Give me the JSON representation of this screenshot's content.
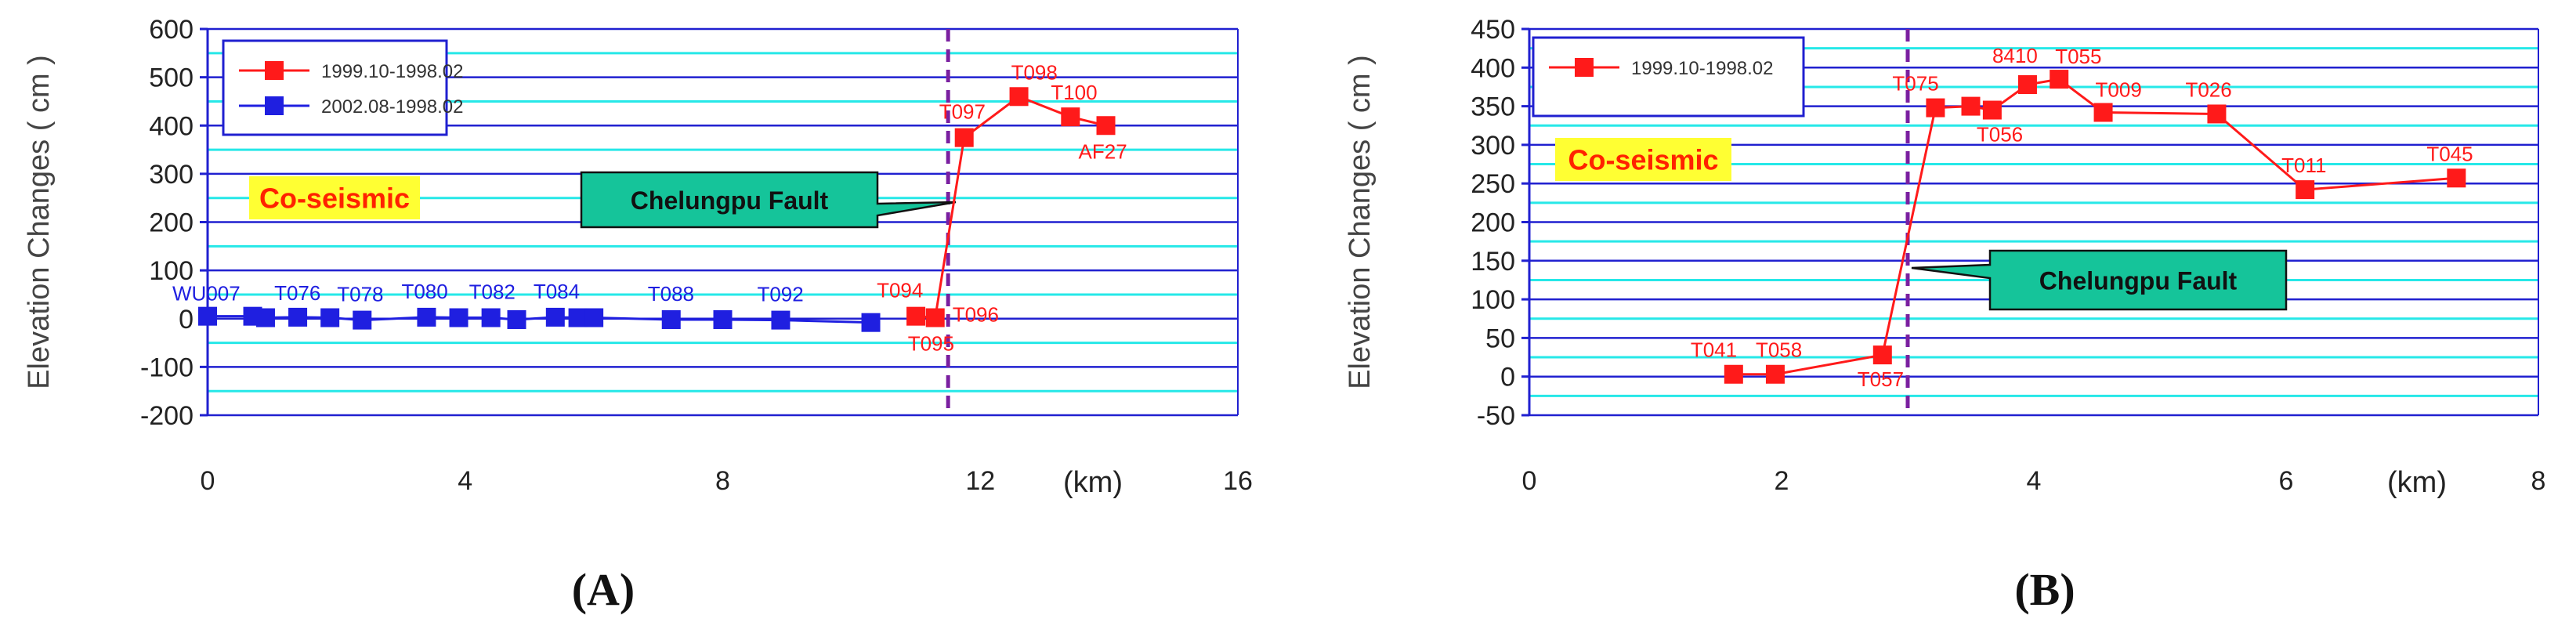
{
  "colors": {
    "series_red": "#ff1a1a",
    "series_blue": "#1f1fe0",
    "grid": "#26e8e8",
    "axis": "#2020d0",
    "fault": "#7a1fa0",
    "fault_box_fill": "#15c49a",
    "coseismic_bg": "#ffff33",
    "coseismic_text": "#ff2200"
  },
  "chart_data": [
    {
      "type": "line",
      "panel_label": "(A)",
      "panel_letter": "A",
      "ylabel": "Elevation Changes ( cm )",
      "xunit": "(km)",
      "xlim": [
        0,
        16
      ],
      "ylim": [
        -200,
        600
      ],
      "xticks": [
        0,
        4,
        8,
        12,
        16
      ],
      "yticks": [
        -200,
        -100,
        0,
        100,
        200,
        300,
        400,
        500,
        600
      ],
      "annotation": "Co-seismic",
      "fault_label": "Chelungpu Fault",
      "fault_x": 11.5,
      "series": [
        {
          "name": "1999.10-1998.02",
          "color": "red",
          "points": [
            {
              "x": 11.0,
              "y": 5,
              "label": "T094"
            },
            {
              "x": 11.3,
              "y": 2,
              "label": "T095"
            },
            {
              "x": 11.75,
              "y": 375,
              "label": "T097"
            },
            {
              "x": 12.6,
              "y": 460,
              "label": "T098"
            },
            {
              "x": 13.4,
              "y": 418,
              "label": "T100"
            },
            {
              "x": 13.95,
              "y": 400,
              "label": "AF27"
            }
          ],
          "extra_labels": [
            {
              "x": 11.3,
              "y": 2,
              "label": "T096"
            }
          ]
        },
        {
          "name": "2002.08-1998.02",
          "color": "blue",
          "points": [
            {
              "x": 0.0,
              "y": 5,
              "label": "WU007"
            },
            {
              "x": 0.7,
              "y": 5,
              "label": ""
            },
            {
              "x": 0.9,
              "y": 2,
              "label": ""
            },
            {
              "x": 1.4,
              "y": 3,
              "label": "T076"
            },
            {
              "x": 1.9,
              "y": 2,
              "label": ""
            },
            {
              "x": 2.4,
              "y": -3,
              "label": "T078"
            },
            {
              "x": 3.4,
              "y": 3,
              "label": "T080"
            },
            {
              "x": 3.9,
              "y": 2,
              "label": ""
            },
            {
              "x": 4.4,
              "y": 2,
              "label": "T082"
            },
            {
              "x": 4.8,
              "y": -2,
              "label": ""
            },
            {
              "x": 5.4,
              "y": 3,
              "label": "T084"
            },
            {
              "x": 5.75,
              "y": 2,
              "label": ""
            },
            {
              "x": 6.0,
              "y": 2,
              "label": ""
            },
            {
              "x": 7.2,
              "y": -2,
              "label": "T088"
            },
            {
              "x": 8.0,
              "y": -2,
              "label": ""
            },
            {
              "x": 8.9,
              "y": -3,
              "label": "T092"
            },
            {
              "x": 10.3,
              "y": -8,
              "label": ""
            }
          ],
          "extra_labels": []
        }
      ]
    },
    {
      "type": "line",
      "panel_label": "(B)",
      "panel_letter": "B",
      "ylabel": "Elevation Changes ( cm )",
      "xunit": "(km)",
      "xlim": [
        0,
        8
      ],
      "ylim": [
        -50,
        450
      ],
      "xticks": [
        0,
        2,
        4,
        6,
        8
      ],
      "yticks": [
        -50,
        0,
        50,
        100,
        150,
        200,
        250,
        300,
        350,
        400,
        450
      ],
      "annotation": "Co-seismic",
      "fault_label": "Chelungpu Fault",
      "fault_x": 3.0,
      "series": [
        {
          "name": "1999.10-1998.02",
          "color": "red",
          "points": [
            {
              "x": 1.62,
              "y": 3,
              "label": "T041"
            },
            {
              "x": 1.95,
              "y": 3,
              "label": "T058"
            },
            {
              "x": 2.8,
              "y": 28,
              "label": "T057"
            },
            {
              "x": 3.22,
              "y": 348,
              "label": "T075"
            },
            {
              "x": 3.5,
              "y": 350,
              "label": ""
            },
            {
              "x": 3.67,
              "y": 345,
              "label": "T056"
            },
            {
              "x": 3.95,
              "y": 378,
              "label": "8410"
            },
            {
              "x": 4.2,
              "y": 385,
              "label": "T055"
            },
            {
              "x": 4.55,
              "y": 342,
              "label": "T009"
            },
            {
              "x": 5.45,
              "y": 340,
              "label": "T026"
            },
            {
              "x": 6.15,
              "y": 242,
              "label": "T011"
            },
            {
              "x": 7.35,
              "y": 257,
              "label": "T045"
            }
          ],
          "extra_labels": []
        }
      ]
    }
  ]
}
